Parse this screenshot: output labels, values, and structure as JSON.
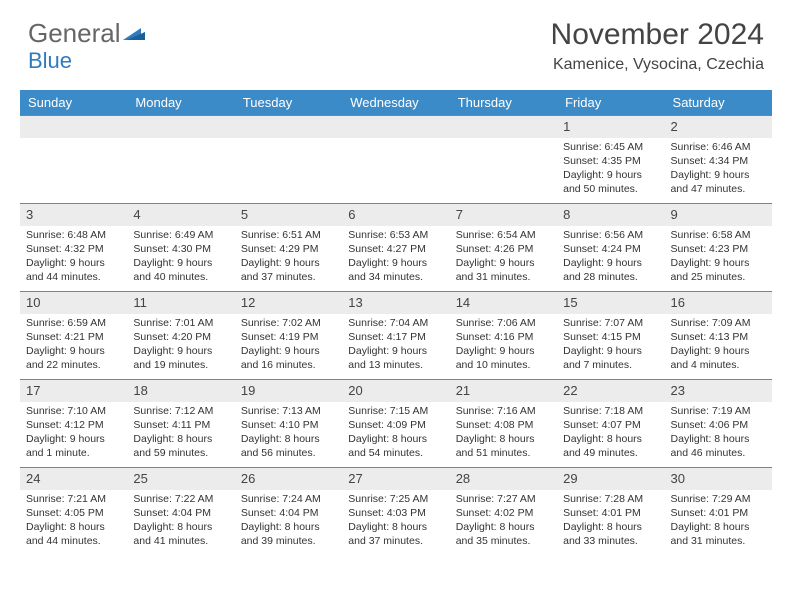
{
  "brand": {
    "part1": "General",
    "part2": "Blue"
  },
  "title": "November 2024",
  "location": "Kamenice, Vysocina, Czechia",
  "colors": {
    "header_bg": "#3b8bc9",
    "header_text": "#ffffff",
    "cell_divider": "#5a8db5",
    "daynum_bg": "#ececec",
    "body_text": "#333333",
    "title_text": "#444444"
  },
  "weekdays": [
    "Sunday",
    "Monday",
    "Tuesday",
    "Wednesday",
    "Thursday",
    "Friday",
    "Saturday"
  ],
  "weeks": [
    [
      null,
      null,
      null,
      null,
      null,
      {
        "n": "1",
        "sunrise": "6:45 AM",
        "sunset": "4:35 PM",
        "daylight": "9 hours and 50 minutes."
      },
      {
        "n": "2",
        "sunrise": "6:46 AM",
        "sunset": "4:34 PM",
        "daylight": "9 hours and 47 minutes."
      }
    ],
    [
      {
        "n": "3",
        "sunrise": "6:48 AM",
        "sunset": "4:32 PM",
        "daylight": "9 hours and 44 minutes."
      },
      {
        "n": "4",
        "sunrise": "6:49 AM",
        "sunset": "4:30 PM",
        "daylight": "9 hours and 40 minutes."
      },
      {
        "n": "5",
        "sunrise": "6:51 AM",
        "sunset": "4:29 PM",
        "daylight": "9 hours and 37 minutes."
      },
      {
        "n": "6",
        "sunrise": "6:53 AM",
        "sunset": "4:27 PM",
        "daylight": "9 hours and 34 minutes."
      },
      {
        "n": "7",
        "sunrise": "6:54 AM",
        "sunset": "4:26 PM",
        "daylight": "9 hours and 31 minutes."
      },
      {
        "n": "8",
        "sunrise": "6:56 AM",
        "sunset": "4:24 PM",
        "daylight": "9 hours and 28 minutes."
      },
      {
        "n": "9",
        "sunrise": "6:58 AM",
        "sunset": "4:23 PM",
        "daylight": "9 hours and 25 minutes."
      }
    ],
    [
      {
        "n": "10",
        "sunrise": "6:59 AM",
        "sunset": "4:21 PM",
        "daylight": "9 hours and 22 minutes."
      },
      {
        "n": "11",
        "sunrise": "7:01 AM",
        "sunset": "4:20 PM",
        "daylight": "9 hours and 19 minutes."
      },
      {
        "n": "12",
        "sunrise": "7:02 AM",
        "sunset": "4:19 PM",
        "daylight": "9 hours and 16 minutes."
      },
      {
        "n": "13",
        "sunrise": "7:04 AM",
        "sunset": "4:17 PM",
        "daylight": "9 hours and 13 minutes."
      },
      {
        "n": "14",
        "sunrise": "7:06 AM",
        "sunset": "4:16 PM",
        "daylight": "9 hours and 10 minutes."
      },
      {
        "n": "15",
        "sunrise": "7:07 AM",
        "sunset": "4:15 PM",
        "daylight": "9 hours and 7 minutes."
      },
      {
        "n": "16",
        "sunrise": "7:09 AM",
        "sunset": "4:13 PM",
        "daylight": "9 hours and 4 minutes."
      }
    ],
    [
      {
        "n": "17",
        "sunrise": "7:10 AM",
        "sunset": "4:12 PM",
        "daylight": "9 hours and 1 minute."
      },
      {
        "n": "18",
        "sunrise": "7:12 AM",
        "sunset": "4:11 PM",
        "daylight": "8 hours and 59 minutes."
      },
      {
        "n": "19",
        "sunrise": "7:13 AM",
        "sunset": "4:10 PM",
        "daylight": "8 hours and 56 minutes."
      },
      {
        "n": "20",
        "sunrise": "7:15 AM",
        "sunset": "4:09 PM",
        "daylight": "8 hours and 54 minutes."
      },
      {
        "n": "21",
        "sunrise": "7:16 AM",
        "sunset": "4:08 PM",
        "daylight": "8 hours and 51 minutes."
      },
      {
        "n": "22",
        "sunrise": "7:18 AM",
        "sunset": "4:07 PM",
        "daylight": "8 hours and 49 minutes."
      },
      {
        "n": "23",
        "sunrise": "7:19 AM",
        "sunset": "4:06 PM",
        "daylight": "8 hours and 46 minutes."
      }
    ],
    [
      {
        "n": "24",
        "sunrise": "7:21 AM",
        "sunset": "4:05 PM",
        "daylight": "8 hours and 44 minutes."
      },
      {
        "n": "25",
        "sunrise": "7:22 AM",
        "sunset": "4:04 PM",
        "daylight": "8 hours and 41 minutes."
      },
      {
        "n": "26",
        "sunrise": "7:24 AM",
        "sunset": "4:04 PM",
        "daylight": "8 hours and 39 minutes."
      },
      {
        "n": "27",
        "sunrise": "7:25 AM",
        "sunset": "4:03 PM",
        "daylight": "8 hours and 37 minutes."
      },
      {
        "n": "28",
        "sunrise": "7:27 AM",
        "sunset": "4:02 PM",
        "daylight": "8 hours and 35 minutes."
      },
      {
        "n": "29",
        "sunrise": "7:28 AM",
        "sunset": "4:01 PM",
        "daylight": "8 hours and 33 minutes."
      },
      {
        "n": "30",
        "sunrise": "7:29 AM",
        "sunset": "4:01 PM",
        "daylight": "8 hours and 31 minutes."
      }
    ]
  ],
  "labels": {
    "sunrise": "Sunrise:",
    "sunset": "Sunset:",
    "daylight": "Daylight:"
  }
}
